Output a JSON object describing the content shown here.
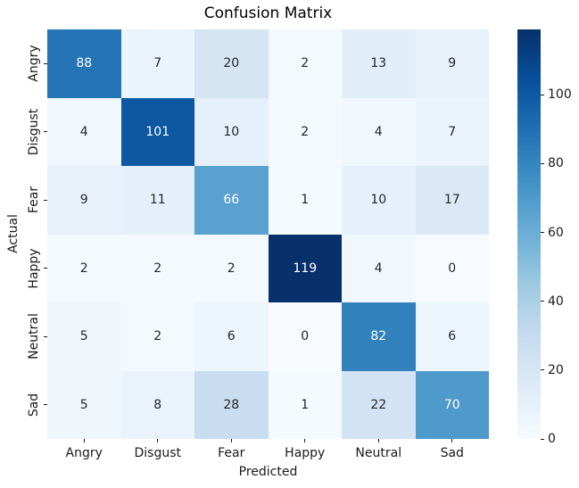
{
  "chart_data": {
    "type": "heatmap",
    "title": "Confusion Matrix",
    "xlabel": "Predicted",
    "ylabel": "Actual",
    "x_categories": [
      "Angry",
      "Disgust",
      "Fear",
      "Happy",
      "Neutral",
      "Sad"
    ],
    "y_categories": [
      "Angry",
      "Disgust",
      "Fear",
      "Happy",
      "Neutral",
      "Sad"
    ],
    "matrix": [
      [
        88,
        7,
        20,
        2,
        13,
        9
      ],
      [
        4,
        101,
        10,
        2,
        4,
        7
      ],
      [
        9,
        11,
        66,
        1,
        10,
        17
      ],
      [
        2,
        2,
        2,
        119,
        4,
        0
      ],
      [
        5,
        2,
        6,
        0,
        82,
        6
      ],
      [
        5,
        8,
        28,
        1,
        22,
        70
      ]
    ],
    "vmin": 0,
    "vmax": 119,
    "colormap": "Blues",
    "colormap_anchors": [
      "#f7fbff",
      "#deebf7",
      "#c6dbef",
      "#9ecae1",
      "#6baed6",
      "#4292c6",
      "#2171b5",
      "#08519c",
      "#08306b"
    ],
    "colorbar_ticks": [
      0,
      20,
      40,
      60,
      80,
      100
    ],
    "annotation_dark_text_color": "#262626",
    "annotation_light_text_color": "#ffffff",
    "legend_position": "right",
    "grid": false
  }
}
